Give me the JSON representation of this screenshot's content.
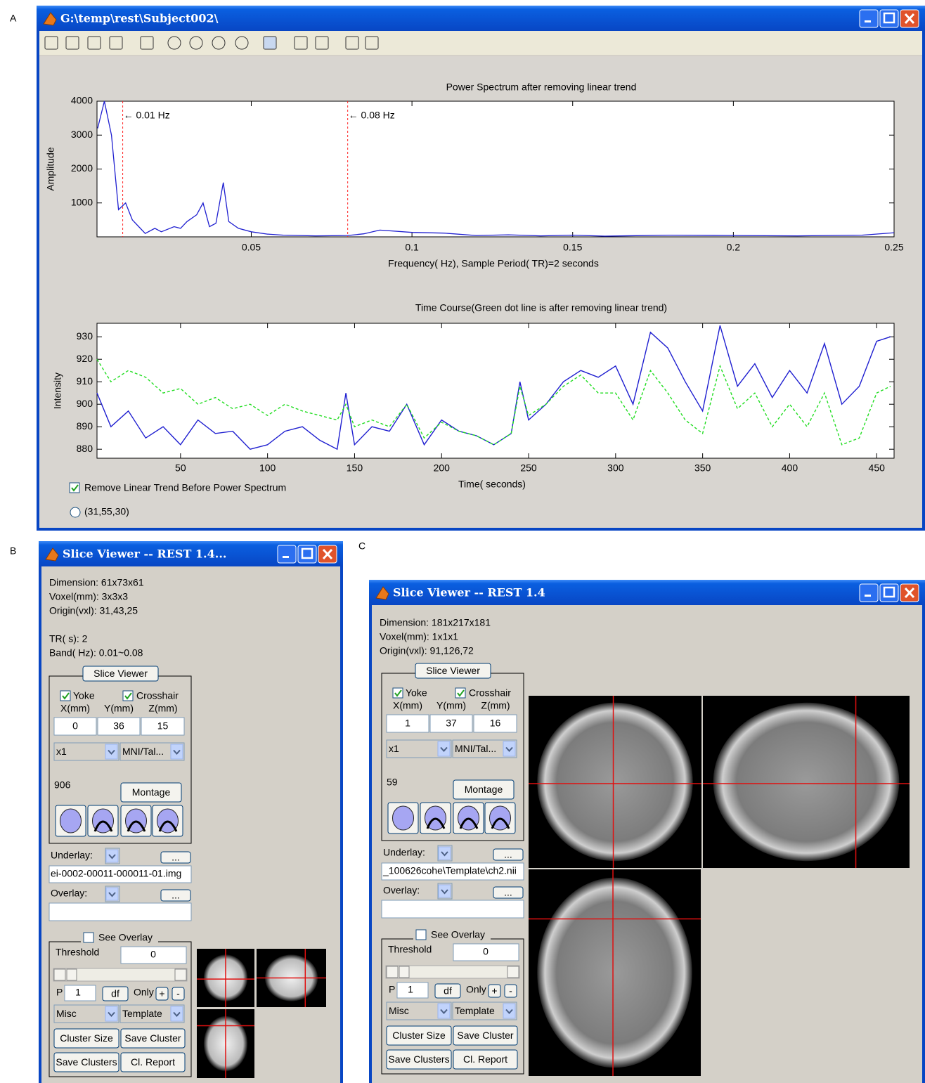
{
  "panel_labels": [
    "A",
    "B",
    "C"
  ],
  "main_window": {
    "title": "G:\\temp\\rest\\Subject002\\",
    "checkbox": "Remove Linear Trend Before Power Spectrum",
    "radio": "(31,55,30)"
  },
  "chart_data": [
    {
      "type": "line",
      "title": "Power Spectrum after removing linear trend",
      "x_label": "Frequency( Hz), Sample Period( TR)=2 seconds",
      "y_label": "Amplitude",
      "x": [
        0.0022,
        0.0043,
        0.0065,
        0.0087,
        0.0109,
        0.013,
        0.015,
        0.017,
        0.02,
        0.022,
        0.026,
        0.028,
        0.03,
        0.033,
        0.035,
        0.037,
        0.039,
        0.0413,
        0.043,
        0.046,
        0.05,
        0.055,
        0.06,
        0.07,
        0.08,
        0.085,
        0.09,
        0.1,
        0.11,
        0.12,
        0.13,
        0.14,
        0.15,
        0.16,
        0.18,
        0.2,
        0.22,
        0.24,
        0.25
      ],
      "values": [
        3200,
        4000,
        3000,
        800,
        1000,
        500,
        300,
        100,
        250,
        150,
        300,
        250,
        450,
        650,
        1000,
        300,
        400,
        1600,
        450,
        250,
        150,
        80,
        50,
        30,
        40,
        90,
        200,
        130,
        110,
        40,
        60,
        30,
        50,
        20,
        50,
        40,
        30,
        50,
        120
      ],
      "color": "#1f1fd0",
      "xlim": [
        0.002,
        0.25
      ],
      "ylim": [
        0,
        4000
      ],
      "xticks": [
        0.05,
        0.1,
        0.15,
        0.2,
        0.25
      ],
      "yticks": [
        1000,
        2000,
        3000,
        4000
      ],
      "annotations": [
        {
          "x": 0.01,
          "text": "← 0.01 Hz"
        },
        {
          "x": 0.08,
          "text": "← 0.08 Hz"
        }
      ]
    },
    {
      "type": "line",
      "title": "Time Course(Green dot line is after removing linear trend)",
      "x_label": "Time( seconds)",
      "y_label": "Intensity",
      "x": [
        2,
        10,
        20,
        30,
        40,
        50,
        60,
        70,
        80,
        90,
        100,
        110,
        120,
        130,
        140,
        145,
        150,
        160,
        170,
        180,
        190,
        200,
        210,
        220,
        230,
        240,
        245,
        250,
        260,
        270,
        280,
        290,
        300,
        310,
        320,
        330,
        340,
        350,
        360,
        370,
        380,
        390,
        400,
        410,
        420,
        430,
        440,
        450,
        458
      ],
      "series": [
        {
          "color": "#1f1fd0",
          "line_style": "solid",
          "values": [
            905,
            890,
            897,
            885,
            890,
            882,
            893,
            887,
            888,
            880,
            882,
            888,
            890,
            884,
            880,
            905,
            882,
            890,
            888,
            900,
            882,
            893,
            888,
            886,
            882,
            887,
            910,
            893,
            900,
            910,
            915,
            912,
            917,
            900,
            932,
            925,
            910,
            897,
            935,
            908,
            918,
            903,
            915,
            905,
            927,
            900,
            908,
            928,
            930
          ]
        },
        {
          "color": "#22dd22",
          "line_style": "dotted",
          "values": [
            920,
            910,
            915,
            912,
            905,
            907,
            900,
            903,
            898,
            900,
            895,
            900,
            897,
            895,
            893,
            900,
            890,
            893,
            890,
            900,
            885,
            892,
            888,
            886,
            882,
            887,
            908,
            895,
            900,
            908,
            913,
            905,
            905,
            893,
            915,
            905,
            893,
            887,
            917,
            898,
            905,
            890,
            900,
            890,
            905,
            882,
            885,
            905,
            908
          ]
        }
      ],
      "xlim": [
        2,
        460
      ],
      "ylim": [
        876,
        936
      ],
      "xticks": [
        50,
        100,
        150,
        200,
        250,
        300,
        350,
        400,
        450
      ],
      "yticks": [
        880,
        890,
        900,
        910,
        920,
        930
      ]
    }
  ],
  "viewers": [
    {
      "title": "Slice Viewer -- REST 1.4...",
      "info_groups": [
        [
          "Dimension: 61x73x61",
          "Voxel(mm): 3x3x3",
          "Origin(vxl): 31,43,25"
        ],
        [
          "TR( s): 2",
          "Band( Hz): 0.01~0.08"
        ]
      ],
      "group_title": "Slice Viewer",
      "yoke": "Yoke",
      "crosshair": "Crosshair",
      "coord_headers": [
        "X(mm)",
        "Y(mm)",
        "Z(mm)"
      ],
      "coords": [
        "0",
        "36",
        "15"
      ],
      "zoom": "x1",
      "space": "MNI/Tal...",
      "value": "906",
      "montage": "Montage",
      "underlay_label": "Underlay:",
      "underlay_file": "ei-0002-00011-000011-01.img",
      "overlay_label": "Overlay:",
      "browse": "...",
      "see_overlay": "See Overlay",
      "threshold_label": "Threshold",
      "threshold_value": "0",
      "p_label": "P",
      "p_value": "1",
      "df": "df",
      "only": "Only",
      "plus": "+",
      "minus": "-",
      "misc": "Misc",
      "template": "Template",
      "buttons": [
        "Cluster Size",
        "Save Cluster",
        "Save Clusters",
        "Cl. Report"
      ]
    },
    {
      "title": "Slice Viewer -- REST 1.4",
      "info_groups": [
        [
          "Dimension: 181x217x181",
          "Voxel(mm): 1x1x1",
          "Origin(vxl): 91,126,72"
        ]
      ],
      "group_title": "Slice Viewer",
      "yoke": "Yoke",
      "crosshair": "Crosshair",
      "coord_headers": [
        "X(mm)",
        "Y(mm)",
        "Z(mm)"
      ],
      "coords": [
        "1",
        "37",
        "16"
      ],
      "zoom": "x1",
      "space": "MNI/Tal...",
      "value": "59",
      "montage": "Montage",
      "underlay_label": "Underlay:",
      "underlay_file": "_100626cohe\\Template\\ch2.nii",
      "overlay_label": "Overlay:",
      "browse": "...",
      "see_overlay": "See Overlay",
      "threshold_label": "Threshold",
      "threshold_value": "0",
      "p_label": "P",
      "p_value": "1",
      "df": "df",
      "only": "Only",
      "plus": "+",
      "minus": "-",
      "misc": "Misc",
      "template": "Template",
      "buttons": [
        "Cluster Size",
        "Save Cluster",
        "Save Clusters",
        "Cl. Report"
      ]
    }
  ]
}
